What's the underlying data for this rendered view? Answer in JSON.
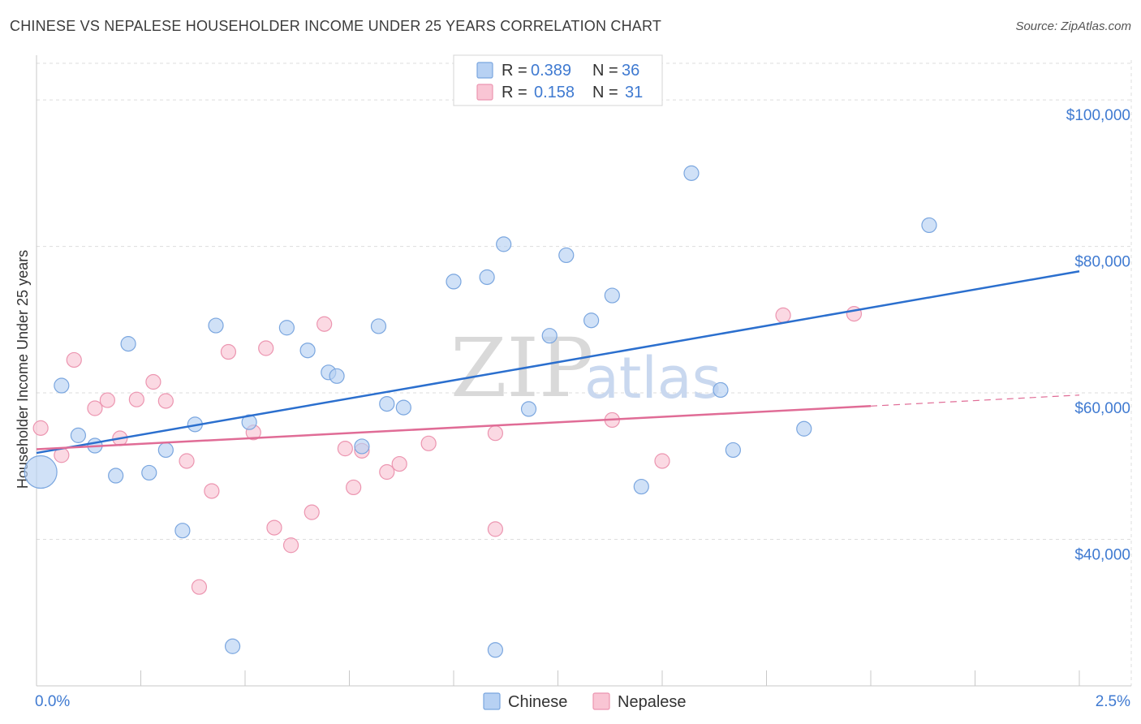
{
  "title": "CHINESE VS NEPALESE HOUSEHOLDER INCOME UNDER 25 YEARS CORRELATION CHART",
  "source": "Source: ZipAtlas.com",
  "watermark": {
    "part1": "ZIP",
    "part2": "atlas"
  },
  "colors": {
    "chinese_fill": "#b7d1f3",
    "chinese_stroke": "#7aa6df",
    "chinese_line": "#2b6fce",
    "nepalese_fill": "#f9c5d4",
    "nepalese_stroke": "#ec95b0",
    "nepalese_line": "#e06c96",
    "tick_text": "#3f7ad1",
    "grid": "#dddddd"
  },
  "legend": {
    "rows": [
      {
        "r_label": "R =",
        "r_value": "0.389",
        "n_label": "N =",
        "n_value": "36"
      },
      {
        "r_label": "R =",
        "r_value": "0.158",
        "n_label": "N =",
        "n_value": "31"
      }
    ]
  },
  "chart_data": {
    "type": "scatter",
    "title": "CHINESE VS NEPALESE HOUSEHOLDER INCOME UNDER 25 YEARS CORRELATION CHART",
    "xlabel": "",
    "ylabel": "Householder Income Under 25 years",
    "xlim": [
      0,
      2.5
    ],
    "ylim": [
      20000,
      105000
    ],
    "x_tick_labels": [
      "0.0%",
      "2.5%"
    ],
    "y_ticks": [
      40000,
      60000,
      80000,
      100000
    ],
    "y_tick_labels": [
      "$40,000",
      "$60,000",
      "$80,000",
      "$100,000"
    ],
    "grid": true,
    "legend_position": "top-center",
    "series": [
      {
        "name": "Chinese",
        "r": 0.389,
        "n": 36,
        "trend": {
          "x0": 0.0,
          "y0": 51800,
          "x1": 2.5,
          "y1": 76600
        },
        "points": [
          {
            "x": 0.01,
            "y": 49200,
            "big": true
          },
          {
            "x": 0.06,
            "y": 61000
          },
          {
            "x": 0.1,
            "y": 54200
          },
          {
            "x": 0.14,
            "y": 52800
          },
          {
            "x": 0.19,
            "y": 48700
          },
          {
            "x": 0.22,
            "y": 66700
          },
          {
            "x": 0.27,
            "y": 49100
          },
          {
            "x": 0.31,
            "y": 52200
          },
          {
            "x": 0.35,
            "y": 41200
          },
          {
            "x": 0.38,
            "y": 55700
          },
          {
            "x": 0.43,
            "y": 69200
          },
          {
            "x": 0.47,
            "y": 25400
          },
          {
            "x": 0.51,
            "y": 56000
          },
          {
            "x": 0.6,
            "y": 68900
          },
          {
            "x": 0.65,
            "y": 65800
          },
          {
            "x": 0.7,
            "y": 62800
          },
          {
            "x": 0.72,
            "y": 62300
          },
          {
            "x": 0.78,
            "y": 52700
          },
          {
            "x": 0.82,
            "y": 69100
          },
          {
            "x": 0.84,
            "y": 58500
          },
          {
            "x": 0.88,
            "y": 58000
          },
          {
            "x": 1.0,
            "y": 75200
          },
          {
            "x": 1.08,
            "y": 75800
          },
          {
            "x": 1.1,
            "y": 24900
          },
          {
            "x": 1.12,
            "y": 80300
          },
          {
            "x": 1.18,
            "y": 57800
          },
          {
            "x": 1.23,
            "y": 67800
          },
          {
            "x": 1.27,
            "y": 78800
          },
          {
            "x": 1.33,
            "y": 69900
          },
          {
            "x": 1.38,
            "y": 73300
          },
          {
            "x": 1.45,
            "y": 47200
          },
          {
            "x": 1.57,
            "y": 90000
          },
          {
            "x": 1.64,
            "y": 60400
          },
          {
            "x": 1.67,
            "y": 52200
          },
          {
            "x": 1.84,
            "y": 55100
          },
          {
            "x": 2.14,
            "y": 82900
          }
        ]
      },
      {
        "name": "Nepalese",
        "r": 0.158,
        "n": 31,
        "trend": {
          "x0": 0.0,
          "y0": 52300,
          "x1": 2.0,
          "y1": 58200
        },
        "trend_extension": {
          "x0": 2.0,
          "y0": 58200,
          "x1": 2.5,
          "y1": 59700
        },
        "points": [
          {
            "x": 0.01,
            "y": 55200
          },
          {
            "x": 0.06,
            "y": 51500
          },
          {
            "x": 0.09,
            "y": 64500
          },
          {
            "x": 0.14,
            "y": 57900
          },
          {
            "x": 0.17,
            "y": 59000
          },
          {
            "x": 0.2,
            "y": 53800
          },
          {
            "x": 0.24,
            "y": 59100
          },
          {
            "x": 0.28,
            "y": 61500
          },
          {
            "x": 0.31,
            "y": 58900
          },
          {
            "x": 0.36,
            "y": 50700
          },
          {
            "x": 0.39,
            "y": 33500
          },
          {
            "x": 0.42,
            "y": 46600
          },
          {
            "x": 0.46,
            "y": 65600
          },
          {
            "x": 0.52,
            "y": 54600
          },
          {
            "x": 0.55,
            "y": 66100
          },
          {
            "x": 0.57,
            "y": 41600
          },
          {
            "x": 0.61,
            "y": 39200
          },
          {
            "x": 0.66,
            "y": 43700
          },
          {
            "x": 0.69,
            "y": 69400
          },
          {
            "x": 0.74,
            "y": 52400
          },
          {
            "x": 0.76,
            "y": 47100
          },
          {
            "x": 0.78,
            "y": 52100
          },
          {
            "x": 0.84,
            "y": 49200
          },
          {
            "x": 0.87,
            "y": 50300
          },
          {
            "x": 0.94,
            "y": 53100
          },
          {
            "x": 1.1,
            "y": 54500
          },
          {
            "x": 1.1,
            "y": 41400
          },
          {
            "x": 1.38,
            "y": 56300
          },
          {
            "x": 1.5,
            "y": 50700
          },
          {
            "x": 1.79,
            "y": 70600
          },
          {
            "x": 1.96,
            "y": 70800
          }
        ]
      }
    ]
  }
}
